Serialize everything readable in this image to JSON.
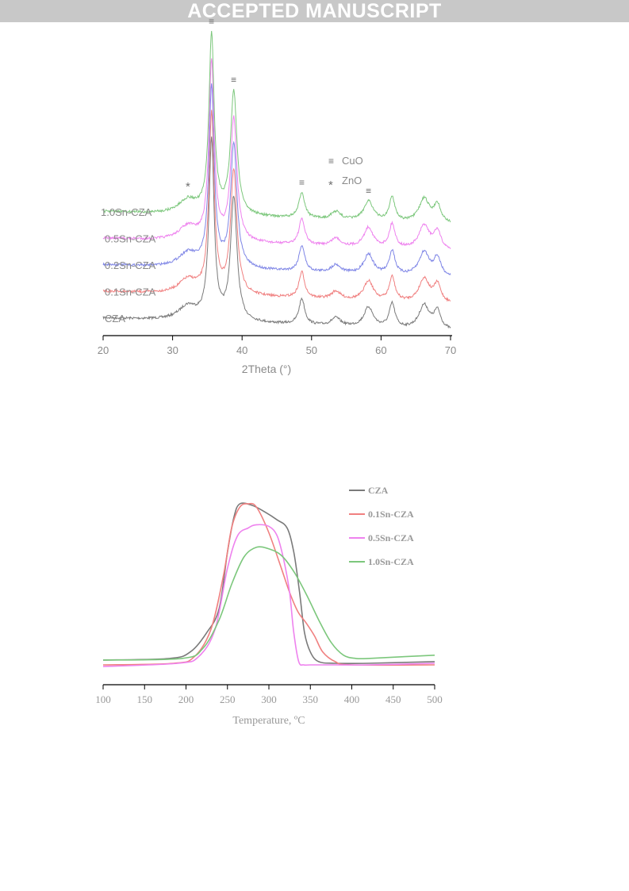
{
  "header": {
    "banner": "ACCEPTED MANUSCRIPT"
  },
  "colors": {
    "banner_bg": "#c8c8c8",
    "CZA": "#7a7a7a",
    "0.1Sn-CZA": "#f08080",
    "0.2Sn-CZA": "#7f86e6",
    "0.5Sn-CZA": "#ee82ee",
    "1.0Sn-CZA": "#7cc77c"
  },
  "chart_data": [
    {
      "type": "line",
      "title": "",
      "xlabel": "2Theta (°)",
      "ylabel": "",
      "xlim": [
        20,
        70
      ],
      "xticks": [
        20,
        30,
        40,
        50,
        60,
        70
      ],
      "y_axis_shown": false,
      "grid": false,
      "legend": {
        "placement": "top-right",
        "entries": [
          {
            "marker": "≡",
            "label": "CuO"
          },
          {
            "marker": "*",
            "label": "ZnO"
          }
        ]
      },
      "annotations": [
        {
          "marker": "*",
          "x": 32.2
        },
        {
          "marker": "≡",
          "x": 35.6
        },
        {
          "marker": "≡",
          "x": 38.8
        },
        {
          "marker": "≡",
          "x": 48.6
        },
        {
          "marker": "≡",
          "x": 58.2
        }
      ],
      "series": [
        {
          "name": "CZA",
          "offset": 0
        },
        {
          "name": "0.1Sn-CZA",
          "offset": 1
        },
        {
          "name": "0.2Sn-CZA",
          "offset": 2
        },
        {
          "name": "0.5Sn-CZA",
          "offset": 3
        },
        {
          "name": "1.0Sn-CZA",
          "offset": 4
        }
      ],
      "peaks": [
        {
          "x": 32.2,
          "height": 0.07,
          "width": 1.6
        },
        {
          "x": 35.6,
          "height": 0.9,
          "width": 0.45
        },
        {
          "x": 38.8,
          "height": 0.62,
          "width": 0.55
        },
        {
          "x": 48.6,
          "height": 0.13,
          "width": 0.5
        },
        {
          "x": 53.5,
          "height": 0.04,
          "width": 0.8
        },
        {
          "x": 58.2,
          "height": 0.1,
          "width": 0.8
        },
        {
          "x": 61.6,
          "height": 0.12,
          "width": 0.5
        },
        {
          "x": 66.2,
          "height": 0.12,
          "width": 0.9
        },
        {
          "x": 68.1,
          "height": 0.09,
          "width": 0.6
        }
      ]
    },
    {
      "type": "line",
      "title": "",
      "xlabel": "Temperature, ºC",
      "ylabel": "",
      "xlim": [
        100,
        500
      ],
      "xticks": [
        100,
        150,
        200,
        250,
        300,
        350,
        400,
        450,
        500
      ],
      "ylim": [
        0,
        1
      ],
      "y_axis_shown": false,
      "grid": false,
      "legend": {
        "placement": "top-right"
      },
      "series": [
        {
          "name": "CZA",
          "x": [
            100,
            180,
            205,
            225,
            240,
            250,
            258,
            265,
            280,
            295,
            310,
            322,
            330,
            337,
            343,
            350,
            360,
            380,
            420,
            500
          ],
          "y": [
            0.03,
            0.04,
            0.08,
            0.2,
            0.35,
            0.7,
            0.92,
            1.0,
            0.99,
            0.95,
            0.9,
            0.85,
            0.7,
            0.45,
            0.2,
            0.08,
            0.02,
            0.01,
            0.01,
            0.02
          ]
        },
        {
          "name": "0.1Sn-CZA",
          "x": [
            100,
            185,
            210,
            230,
            245,
            255,
            265,
            275,
            285,
            300,
            315,
            325,
            335,
            345,
            355,
            365,
            380,
            400,
            500
          ],
          "y": [
            0.0,
            0.01,
            0.05,
            0.22,
            0.55,
            0.85,
            0.98,
            1.0,
            0.98,
            0.82,
            0.6,
            0.45,
            0.33,
            0.26,
            0.18,
            0.08,
            0.02,
            0.0,
            0.0
          ]
        },
        {
          "name": "0.5Sn-CZA",
          "x": [
            100,
            190,
            215,
            235,
            250,
            262,
            275,
            285,
            300,
            310,
            318,
            325,
            330,
            336,
            342,
            350,
            380,
            420,
            500
          ],
          "y": [
            -0.01,
            0.01,
            0.05,
            0.22,
            0.6,
            0.8,
            0.85,
            0.87,
            0.86,
            0.8,
            0.65,
            0.45,
            0.2,
            0.02,
            0.0,
            0.0,
            0.0,
            0.0,
            0.01
          ]
        },
        {
          "name": "1.0Sn-CZA",
          "x": [
            100,
            195,
            220,
            240,
            255,
            270,
            285,
            300,
            315,
            330,
            345,
            360,
            375,
            390,
            405,
            420,
            460,
            500
          ],
          "y": [
            0.03,
            0.04,
            0.1,
            0.28,
            0.5,
            0.67,
            0.73,
            0.72,
            0.68,
            0.58,
            0.44,
            0.28,
            0.14,
            0.06,
            0.04,
            0.04,
            0.05,
            0.06
          ]
        }
      ]
    }
  ]
}
